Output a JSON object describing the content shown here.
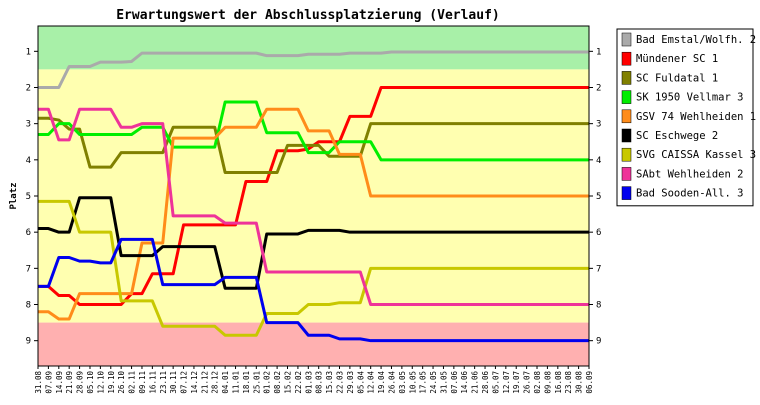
{
  "chart_data": {
    "type": "line",
    "title": "Erwartungswert der Abschlussplatzierung (Verlauf)",
    "ylabel": "Platz",
    "xlabel": "",
    "ylim": [
      0.3,
      9.7
    ],
    "y_inverted": true,
    "yticks": [
      1,
      2,
      3,
      4,
      5,
      6,
      7,
      8,
      9
    ],
    "grid": false,
    "legend_position": "right",
    "x": [
      "31.08",
      "07.09",
      "14.09",
      "21.09",
      "28.09",
      "05.10",
      "12.10",
      "19.10",
      "26.10",
      "02.11",
      "09.11",
      "16.11",
      "23.11",
      "30.11",
      "07.12",
      "14.12",
      "21.12",
      "28.12",
      "04.01",
      "11.01",
      "18.01",
      "25.01",
      "01.02",
      "08.02",
      "15.02",
      "22.02",
      "01.03",
      "08.03",
      "15.03",
      "22.03",
      "29.03",
      "05.04",
      "12.04",
      "19.04",
      "26.04",
      "03.05",
      "10.05",
      "17.05",
      "24.05",
      "31.05",
      "07.06",
      "14.06",
      "21.06",
      "28.06",
      "05.07",
      "12.07",
      "19.07",
      "26.07",
      "02.08",
      "09.08",
      "16.08",
      "23.08",
      "30.08",
      "06.09"
    ],
    "background_bands": [
      {
        "from": 0.3,
        "to": 1.5,
        "color": "#a8f0a8"
      },
      {
        "from": 1.5,
        "to": 8.5,
        "color": "#ffffb0"
      },
      {
        "from": 8.5,
        "to": 9.7,
        "color": "#ffb0b0"
      }
    ],
    "series": [
      {
        "name": "Bad Emstal/Wolfh. 2",
        "color": "#aaaaaa",
        "values": [
          2.0,
          2.0,
          2.0,
          1.42,
          1.42,
          1.42,
          1.3,
          1.3,
          1.3,
          1.28,
          1.05,
          1.05,
          1.05,
          1.05,
          1.05,
          1.05,
          1.05,
          1.05,
          1.05,
          1.05,
          1.05,
          1.05,
          1.12,
          1.12,
          1.12,
          1.12,
          1.08,
          1.08,
          1.08,
          1.08,
          1.05,
          1.05,
          1.05,
          1.05,
          1.02,
          1.02,
          1.02,
          1.02,
          1.02,
          1.02,
          1.02,
          1.02,
          1.02,
          1.02,
          1.02,
          1.02,
          1.02,
          1.02,
          1.02,
          1.02,
          1.02,
          1.02,
          1.02,
          1.02
        ]
      },
      {
        "name": "Mündener SC 1",
        "color": "#ff0000",
        "values": [
          7.5,
          7.5,
          7.75,
          7.75,
          8.0,
          8.0,
          8.0,
          8.0,
          8.0,
          7.7,
          7.7,
          7.15,
          7.15,
          7.15,
          5.8,
          5.8,
          5.8,
          5.8,
          5.8,
          5.8,
          4.6,
          4.6,
          4.6,
          3.75,
          3.75,
          3.75,
          3.7,
          3.5,
          3.5,
          3.5,
          2.8,
          2.8,
          2.8,
          2.0,
          2.0,
          2.0,
          2.0,
          2.0,
          2.0,
          2.0,
          2.0,
          2.0,
          2.0,
          2.0,
          2.0,
          2.0,
          2.0,
          2.0,
          2.0,
          2.0,
          2.0,
          2.0,
          2.0,
          2.0
        ]
      },
      {
        "name": "SC Fuldatal 1",
        "color": "#808000",
        "values": [
          2.85,
          2.85,
          2.9,
          3.15,
          3.15,
          4.2,
          4.2,
          4.2,
          3.8,
          3.8,
          3.8,
          3.8,
          3.8,
          3.1,
          3.1,
          3.1,
          3.1,
          3.1,
          4.35,
          4.35,
          4.35,
          4.35,
          4.35,
          4.35,
          3.6,
          3.6,
          3.6,
          3.6,
          3.9,
          3.9,
          3.9,
          3.9,
          3.0,
          3.0,
          3.0,
          3.0,
          3.0,
          3.0,
          3.0,
          3.0,
          3.0,
          3.0,
          3.0,
          3.0,
          3.0,
          3.0,
          3.0,
          3.0,
          3.0,
          3.0,
          3.0,
          3.0,
          3.0,
          3.0
        ]
      },
      {
        "name": "SK 1950 Vellmar 3",
        "color": "#00ee00",
        "values": [
          3.3,
          3.3,
          3.0,
          3.0,
          3.3,
          3.3,
          3.3,
          3.3,
          3.3,
          3.3,
          3.1,
          3.1,
          3.1,
          3.65,
          3.65,
          3.65,
          3.65,
          3.65,
          2.4,
          2.4,
          2.4,
          2.4,
          3.25,
          3.25,
          3.25,
          3.25,
          3.8,
          3.8,
          3.8,
          3.5,
          3.5,
          3.5,
          3.5,
          4.0,
          4.0,
          4.0,
          4.0,
          4.0,
          4.0,
          4.0,
          4.0,
          4.0,
          4.0,
          4.0,
          4.0,
          4.0,
          4.0,
          4.0,
          4.0,
          4.0,
          4.0,
          4.0,
          4.0,
          4.0
        ]
      },
      {
        "name": "GSV 74 Wehlheiden 1",
        "color": "#ff8c1a",
        "values": [
          8.2,
          8.2,
          8.4,
          8.4,
          7.7,
          7.7,
          7.7,
          7.7,
          7.7,
          7.7,
          6.3,
          6.3,
          6.3,
          3.4,
          3.4,
          3.4,
          3.4,
          3.4,
          3.1,
          3.1,
          3.1,
          3.1,
          2.6,
          2.6,
          2.6,
          2.6,
          3.2,
          3.2,
          3.2,
          3.85,
          3.85,
          3.85,
          5.0,
          5.0,
          5.0,
          5.0,
          5.0,
          5.0,
          5.0,
          5.0,
          5.0,
          5.0,
          5.0,
          5.0,
          5.0,
          5.0,
          5.0,
          5.0,
          5.0,
          5.0,
          5.0,
          5.0,
          5.0,
          5.0
        ]
      },
      {
        "name": "SC Eschwege 2",
        "color": "#000000",
        "values": [
          5.9,
          5.9,
          6.0,
          6.0,
          5.05,
          5.05,
          5.05,
          5.05,
          6.65,
          6.65,
          6.65,
          6.65,
          6.4,
          6.4,
          6.4,
          6.4,
          6.4,
          6.4,
          7.55,
          7.55,
          7.55,
          7.55,
          6.05,
          6.05,
          6.05,
          6.05,
          5.95,
          5.95,
          5.95,
          5.95,
          6.0,
          6.0,
          6.0,
          6.0,
          6.0,
          6.0,
          6.0,
          6.0,
          6.0,
          6.0,
          6.0,
          6.0,
          6.0,
          6.0,
          6.0,
          6.0,
          6.0,
          6.0,
          6.0,
          6.0,
          6.0,
          6.0,
          6.0,
          6.0
        ]
      },
      {
        "name": "SVG CAISSA Kassel 3",
        "color": "#c8c800",
        "values": [
          5.15,
          5.15,
          5.15,
          5.15,
          6.0,
          6.0,
          6.0,
          6.0,
          7.9,
          7.9,
          7.9,
          7.9,
          8.6,
          8.6,
          8.6,
          8.6,
          8.6,
          8.6,
          8.85,
          8.85,
          8.85,
          8.85,
          8.25,
          8.25,
          8.25,
          8.25,
          8.0,
          8.0,
          8.0,
          7.95,
          7.95,
          7.95,
          7.0,
          7.0,
          7.0,
          7.0,
          7.0,
          7.0,
          7.0,
          7.0,
          7.0,
          7.0,
          7.0,
          7.0,
          7.0,
          7.0,
          7.0,
          7.0,
          7.0,
          7.0,
          7.0,
          7.0,
          7.0,
          7.0
        ]
      },
      {
        "name": "SAbt Wehlheiden 2",
        "color": "#ee3399",
        "values": [
          2.6,
          2.6,
          3.45,
          3.45,
          2.6,
          2.6,
          2.6,
          2.6,
          3.1,
          3.1,
          3.0,
          3.0,
          3.0,
          5.55,
          5.55,
          5.55,
          5.55,
          5.55,
          5.75,
          5.75,
          5.75,
          5.75,
          7.1,
          7.1,
          7.1,
          7.1,
          7.1,
          7.1,
          7.1,
          7.1,
          7.1,
          7.1,
          8.0,
          8.0,
          8.0,
          8.0,
          8.0,
          8.0,
          8.0,
          8.0,
          8.0,
          8.0,
          8.0,
          8.0,
          8.0,
          8.0,
          8.0,
          8.0,
          8.0,
          8.0,
          8.0,
          8.0,
          8.0,
          8.0
        ]
      },
      {
        "name": "Bad Sooden-All. 3",
        "color": "#0000ee",
        "values": [
          7.5,
          7.5,
          6.7,
          6.7,
          6.8,
          6.8,
          6.85,
          6.85,
          6.2,
          6.2,
          6.2,
          6.2,
          7.45,
          7.45,
          7.45,
          7.45,
          7.45,
          7.45,
          7.25,
          7.25,
          7.25,
          7.25,
          8.5,
          8.5,
          8.5,
          8.5,
          8.85,
          8.85,
          8.85,
          8.95,
          8.95,
          8.95,
          9.0,
          9.0,
          9.0,
          9.0,
          9.0,
          9.0,
          9.0,
          9.0,
          9.0,
          9.0,
          9.0,
          9.0,
          9.0,
          9.0,
          9.0,
          9.0,
          9.0,
          9.0,
          9.0,
          9.0,
          9.0,
          9.0
        ]
      }
    ]
  }
}
